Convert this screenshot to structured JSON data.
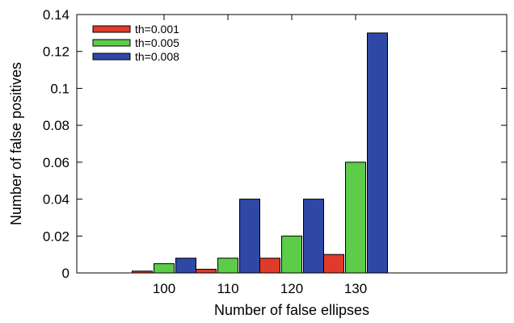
{
  "chart_data": {
    "type": "bar",
    "categories": [
      "100",
      "110",
      "120",
      "130"
    ],
    "series": [
      {
        "name": "th=0.001",
        "color": "#e03a2a",
        "values": [
          0.001,
          0.002,
          0.008,
          0.01
        ]
      },
      {
        "name": "th=0.005",
        "color": "#5ccc49",
        "values": [
          0.005,
          0.008,
          0.02,
          0.06
        ]
      },
      {
        "name": "th=0.008",
        "color": "#2f48a5",
        "values": [
          0.008,
          0.04,
          0.04,
          0.13
        ]
      }
    ],
    "title": "",
    "xlabel": "Number of false ellipses",
    "ylabel": "Number of false positives",
    "ylim": [
      0,
      0.14
    ],
    "yticks": [
      "0",
      "0.02",
      "0.04",
      "0.06",
      "0.08",
      "0.1",
      "0.12",
      "0.14"
    ],
    "grid": false,
    "legend_position": "top-left"
  }
}
